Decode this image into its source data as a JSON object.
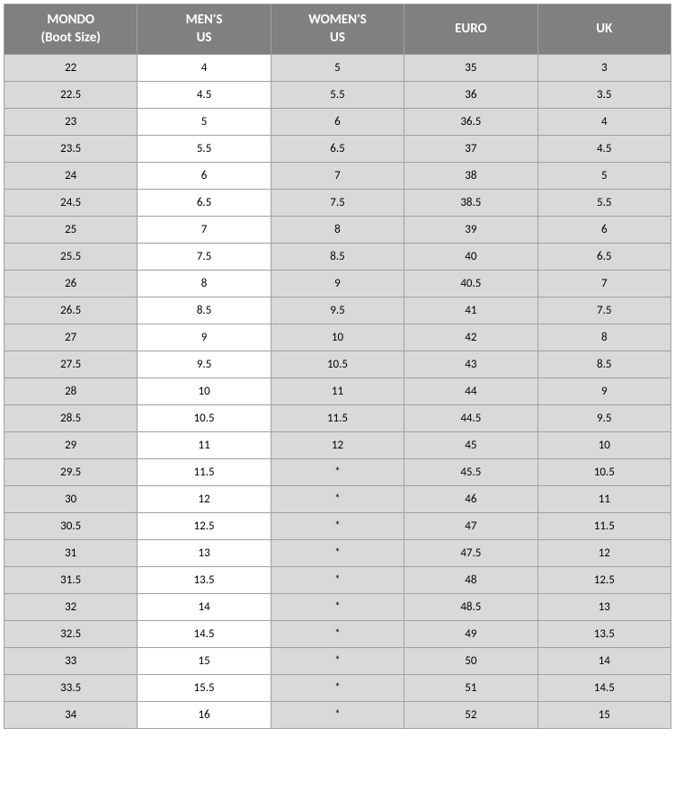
{
  "table": {
    "columns": [
      {
        "line1": "MONDO",
        "line2": "(Boot Size)"
      },
      {
        "line1": "MEN'S",
        "line2": "US"
      },
      {
        "line1": "WOMEN'S",
        "line2": "US"
      },
      {
        "line1": "EURO",
        "line2": ""
      },
      {
        "line1": "UK",
        "line2": ""
      }
    ],
    "rows": [
      [
        "22",
        "4",
        "5",
        "35",
        "3"
      ],
      [
        "22.5",
        "4.5",
        "5.5",
        "36",
        "3.5"
      ],
      [
        "23",
        "5",
        "6",
        "36.5",
        "4"
      ],
      [
        "23.5",
        "5.5",
        "6.5",
        "37",
        "4.5"
      ],
      [
        "24",
        "6",
        "7",
        "38",
        "5"
      ],
      [
        "24.5",
        "6.5",
        "7.5",
        "38.5",
        "5.5"
      ],
      [
        "25",
        "7",
        "8",
        "39",
        "6"
      ],
      [
        "25.5",
        "7.5",
        "8.5",
        "40",
        "6.5"
      ],
      [
        "26",
        "8",
        "9",
        "40.5",
        "7"
      ],
      [
        "26.5",
        "8.5",
        "9.5",
        "41",
        "7.5"
      ],
      [
        "27",
        "9",
        "10",
        "42",
        "8"
      ],
      [
        "27.5",
        "9.5",
        "10.5",
        "43",
        "8.5"
      ],
      [
        "28",
        "10",
        "11",
        "44",
        "9"
      ],
      [
        "28.5",
        "10.5",
        "11.5",
        "44.5",
        "9.5"
      ],
      [
        "29",
        "11",
        "12",
        "45",
        "10"
      ],
      [
        "29.5",
        "11.5",
        "*",
        "45.5",
        "10.5"
      ],
      [
        "30",
        "12",
        "*",
        "46",
        "11"
      ],
      [
        "30.5",
        "12.5",
        "*",
        "47",
        "11.5"
      ],
      [
        "31",
        "13",
        "*",
        "47.5",
        "12"
      ],
      [
        "31.5",
        "13.5",
        "*",
        "48",
        "12.5"
      ],
      [
        "32",
        "14",
        "*",
        "48.5",
        "13"
      ],
      [
        "32.5",
        "14.5",
        "*",
        "49",
        "13.5"
      ],
      [
        "33",
        "15",
        "*",
        "50",
        "14"
      ],
      [
        "33.5",
        "15.5",
        "*",
        "51",
        "14.5"
      ],
      [
        "34",
        "16",
        "*",
        "52",
        "15"
      ]
    ],
    "header_bg": "#808080",
    "header_fg": "#ffffff",
    "alt_bg": "#d9d9d9",
    "norm_bg": "#ffffff",
    "border_color": "#a0a0a0",
    "header_fontsize": 15,
    "cell_fontsize": 13
  }
}
